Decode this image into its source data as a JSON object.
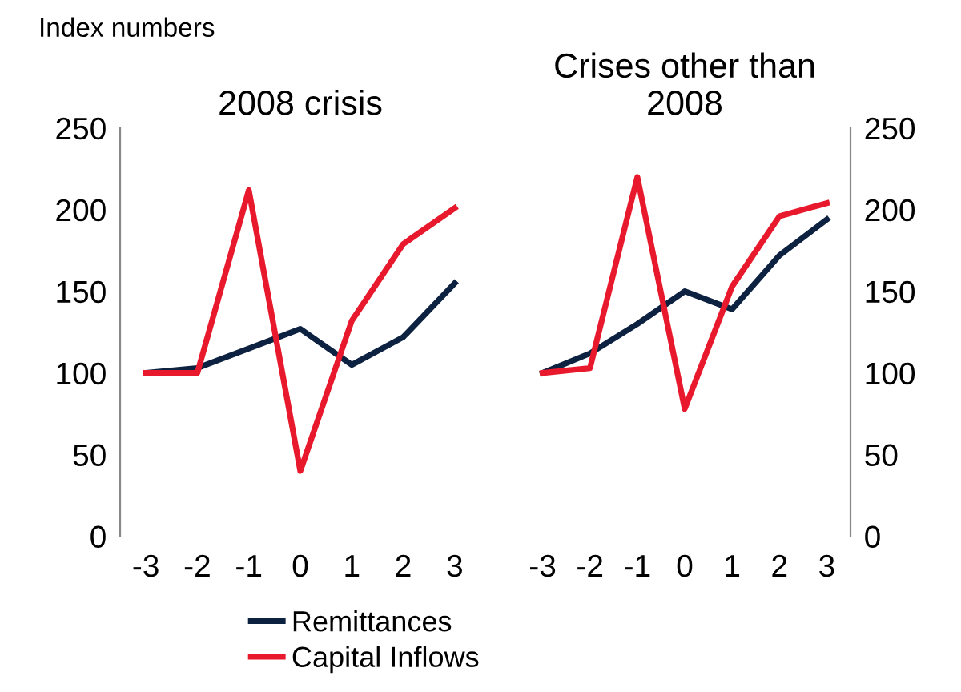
{
  "chart_data": [
    {
      "type": "line",
      "title": "2008 crisis",
      "annotations": [
        "Index numbers"
      ],
      "categories": [
        "-3",
        "-2",
        "-1",
        "0",
        "1",
        "2",
        "3"
      ],
      "ylim": [
        0,
        250
      ],
      "yticks": [
        0,
        50,
        100,
        150,
        200,
        250
      ],
      "grid": false,
      "legend": "bottom",
      "marker": "none",
      "series": [
        {
          "name": "Remittances",
          "color": "#0d2240",
          "values": [
            100,
            103,
            115,
            127,
            105,
            122,
            155
          ]
        },
        {
          "name": "Capital Inflows",
          "color": "#e8192c",
          "values": [
            100,
            100,
            212,
            40,
            132,
            179,
            201
          ]
        }
      ]
    },
    {
      "type": "line",
      "title": "Crises other than\n2008",
      "categories": [
        "-3",
        "-2",
        "-1",
        "0",
        "1",
        "2",
        "3"
      ],
      "y2lim": [
        0,
        250
      ],
      "y2ticks": [
        0,
        50,
        100,
        150,
        200,
        250
      ],
      "grid": false,
      "marker": "none",
      "series": [
        {
          "name": "Remittances",
          "color": "#0d2240",
          "axis": "y2",
          "values": [
            100,
            112,
            130,
            150,
            139,
            172,
            194
          ]
        },
        {
          "name": "Capital Inflows",
          "color": "#e8192c",
          "axis": "y2",
          "values": [
            100,
            103,
            220,
            78,
            153,
            196,
            204
          ]
        }
      ]
    }
  ]
}
